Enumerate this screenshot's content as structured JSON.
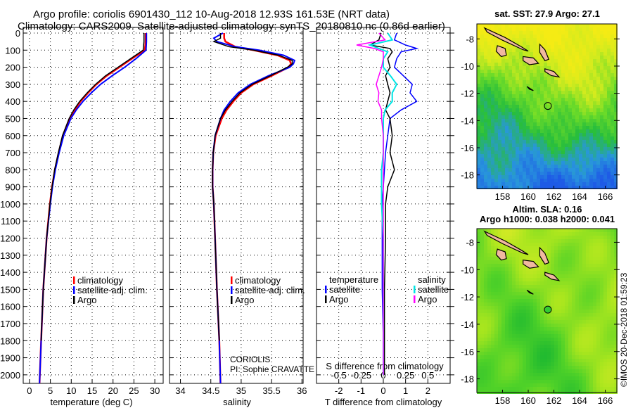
{
  "title_line1": "Argo profile: coriolis 6901430_112 10-Aug-2018 12.93S 161.53E (NRT data)",
  "title_line2": "Climatology: CARS2009. Satellite-adjusted climatology: synTS_20180810.nc (0.86d earlier)",
  "credit": "CORIOLIS",
  "pi": "PI: Sophie CRAVATTE",
  "copyright": "©IMOS 20-Dec-2018 01:59:23",
  "colors": {
    "climatology": "#ff0000",
    "satellite": "#0000ff",
    "argo": "#000000",
    "sal_satellite": "#00e5e5",
    "sal_argo": "#ff00ff",
    "land": "#f0b8a0"
  },
  "chart_data": [
    {
      "type": "line",
      "id": "temperature",
      "xlabel": "temperature (deg C)",
      "xlim": [
        -1.5,
        32
      ],
      "xticks": [
        "0",
        "5",
        "10",
        "15",
        "20",
        "25",
        "30"
      ],
      "ylim": [
        0,
        2050
      ],
      "yticks": [
        "0",
        "100",
        "200",
        "300",
        "400",
        "500",
        "600",
        "700",
        "800",
        "900",
        "1000",
        "1100",
        "1200",
        "1300",
        "1400",
        "1500",
        "1600",
        "1700",
        "1800",
        "1900",
        "2000"
      ],
      "legend": [
        "climatology",
        "satellite-adj. clim.",
        "Argo"
      ],
      "depth": [
        0,
        50,
        100,
        150,
        200,
        250,
        300,
        350,
        400,
        450,
        500,
        600,
        700,
        800,
        900,
        1000,
        1200,
        1500,
        1800,
        2050
      ],
      "series": [
        {
          "name": "climatology",
          "values": [
            27.8,
            27.8,
            27.6,
            24.5,
            21.5,
            18.5,
            16,
            14,
            12.2,
            10.8,
            9.6,
            8,
            7,
            6.1,
            5.4,
            4.9,
            4.1,
            3.3,
            2.8,
            2.4
          ]
        },
        {
          "name": "satellite-adj. clim.",
          "values": [
            28,
            28,
            27.9,
            25.5,
            22.8,
            19.8,
            17,
            14.8,
            12.8,
            11.2,
            9.9,
            8.2,
            7.1,
            6.2,
            5.5,
            5,
            4.1,
            3.3,
            2.8,
            2.4
          ]
        },
        {
          "name": "Argo",
          "values": [
            27.4,
            27.4,
            27.2,
            24.2,
            21.2,
            18.2,
            15.8,
            13.8,
            12,
            10.6,
            9.5,
            7.9,
            6.9,
            6,
            5.4,
            4.9,
            4.1,
            3.3,
            2.8
          ]
        }
      ]
    },
    {
      "type": "line",
      "id": "salinity",
      "xlabel": "salinity",
      "xlim": [
        33.82,
        36.02
      ],
      "xticks": [
        "34",
        "34.5",
        "35",
        "35.5",
        "36"
      ],
      "ylim": [
        0,
        2050
      ],
      "legend": [
        "climatology",
        "satellite-adj. clim.",
        "Argo"
      ],
      "depth": [
        0,
        30,
        50,
        80,
        100,
        130,
        160,
        180,
        200,
        250,
        300,
        350,
        400,
        450,
        500,
        600,
        700,
        800,
        900,
        1000,
        1200,
        1500,
        1800,
        2050
      ],
      "series": [
        {
          "name": "climatology",
          "values": [
            34.72,
            34.72,
            34.74,
            34.9,
            35.2,
            35.6,
            35.8,
            35.82,
            35.78,
            35.5,
            35.2,
            35.0,
            34.87,
            34.76,
            34.68,
            34.58,
            34.54,
            34.53,
            34.53,
            34.55,
            34.57,
            34.6,
            34.64,
            34.66
          ]
        },
        {
          "name": "satellite-adj. clim.",
          "values": [
            34.7,
            34.55,
            34.6,
            34.9,
            35.3,
            35.7,
            35.88,
            35.86,
            35.8,
            35.45,
            35.15,
            34.95,
            34.82,
            34.72,
            34.66,
            34.57,
            34.54,
            34.53,
            34.53,
            34.55,
            34.57,
            34.6,
            34.64,
            34.66
          ]
        },
        {
          "name": "Argo",
          "values": [
            34.66,
            34.66,
            34.55,
            34.8,
            35.2,
            35.62,
            35.84,
            35.84,
            35.76,
            35.48,
            35.18,
            34.98,
            34.85,
            34.74,
            34.66,
            34.57,
            34.54,
            34.53,
            34.53,
            34.55,
            34.57,
            34.6,
            34.64
          ]
        }
      ]
    },
    {
      "type": "line",
      "id": "difference",
      "xlabel": "T difference from climatology",
      "xlabel2": "S difference from climatology",
      "xlim": [
        -3,
        3
      ],
      "xticks": [
        "-2",
        "-1",
        "0",
        "1",
        "2"
      ],
      "xticks2": [
        "-0.5",
        "-0.25",
        "0",
        "0.25",
        "0.5"
      ],
      "ylim": [
        0,
        2050
      ],
      "legend_temperature_title": "temperature",
      "legend_salinity_title": "salinity",
      "legend": [
        "satellite",
        "Argo",
        "satellite",
        "Argo"
      ],
      "depth": [
        0,
        40,
        70,
        90,
        110,
        150,
        200,
        250,
        300,
        350,
        400,
        450,
        500,
        600,
        700,
        800,
        900,
        1000,
        1200,
        1500,
        1800,
        2000
      ],
      "series": [
        {
          "name": "T satellite",
          "values": [
            0.6,
            0.5,
            1.0,
            1.5,
            0.8,
            0.6,
            0.5,
            0.9,
            1.3,
            1.2,
            1.5,
            0.8,
            0.3,
            0.2,
            0.1,
            0.05,
            0,
            -0.05,
            -0.05,
            -0.05,
            0,
            0
          ]
        },
        {
          "name": "T Argo",
          "values": [
            -0.1,
            -0.2,
            -0.6,
            0.3,
            0.4,
            0.2,
            0.3,
            0.1,
            0.2,
            0.3,
            0.2,
            0.1,
            0.3,
            0.4,
            0.3,
            0.5,
            0.2,
            0.1,
            0.1,
            0.05,
            0.05,
            0.05
          ]
        },
        {
          "name": "S satellite",
          "values": [
            0.05,
            0.1,
            -0.15,
            -0.05,
            0.05,
            0.0,
            0.0,
            0.08,
            0.15,
            0.1,
            0.1,
            0.02,
            0.0,
            0.0,
            0.0,
            -0.02,
            -0.02,
            -0.02,
            0,
            0,
            0,
            0
          ]
        },
        {
          "name": "S Argo",
          "values": [
            -0.05,
            0.02,
            -0.3,
            -0.1,
            0.0,
            0.0,
            -0.02,
            -0.05,
            -0.08,
            -0.05,
            -0.06,
            -0.02,
            -0.02,
            0,
            0,
            0,
            0,
            0,
            0,
            0,
            0,
            0
          ]
        }
      ]
    },
    {
      "type": "heatmap",
      "id": "sst-map",
      "title": "sat. SST: 27.9 Argo: 27.1",
      "xlim": [
        156,
        166.9
      ],
      "ylim": [
        -19,
        -6.9
      ],
      "xticks": [
        "158",
        "160",
        "162",
        "164",
        "166"
      ],
      "yticks": [
        "-8",
        "-10",
        "-12",
        "-14",
        "-16",
        "-18"
      ],
      "float_position": [
        161.53,
        -12.93
      ]
    },
    {
      "type": "heatmap",
      "id": "sla-map",
      "title": "Altim. SLA: 0.16",
      "subtitle": "Argo h1000: 0.038 h2000: 0.041",
      "xlim": [
        156,
        166.9
      ],
      "ylim": [
        -19,
        -7
      ],
      "xticks": [
        "158",
        "160",
        "162",
        "164",
        "166"
      ],
      "yticks": [
        "-8",
        "-10",
        "-12",
        "-14",
        "-16",
        "-18"
      ],
      "float_position": [
        161.53,
        -12.93
      ]
    }
  ]
}
